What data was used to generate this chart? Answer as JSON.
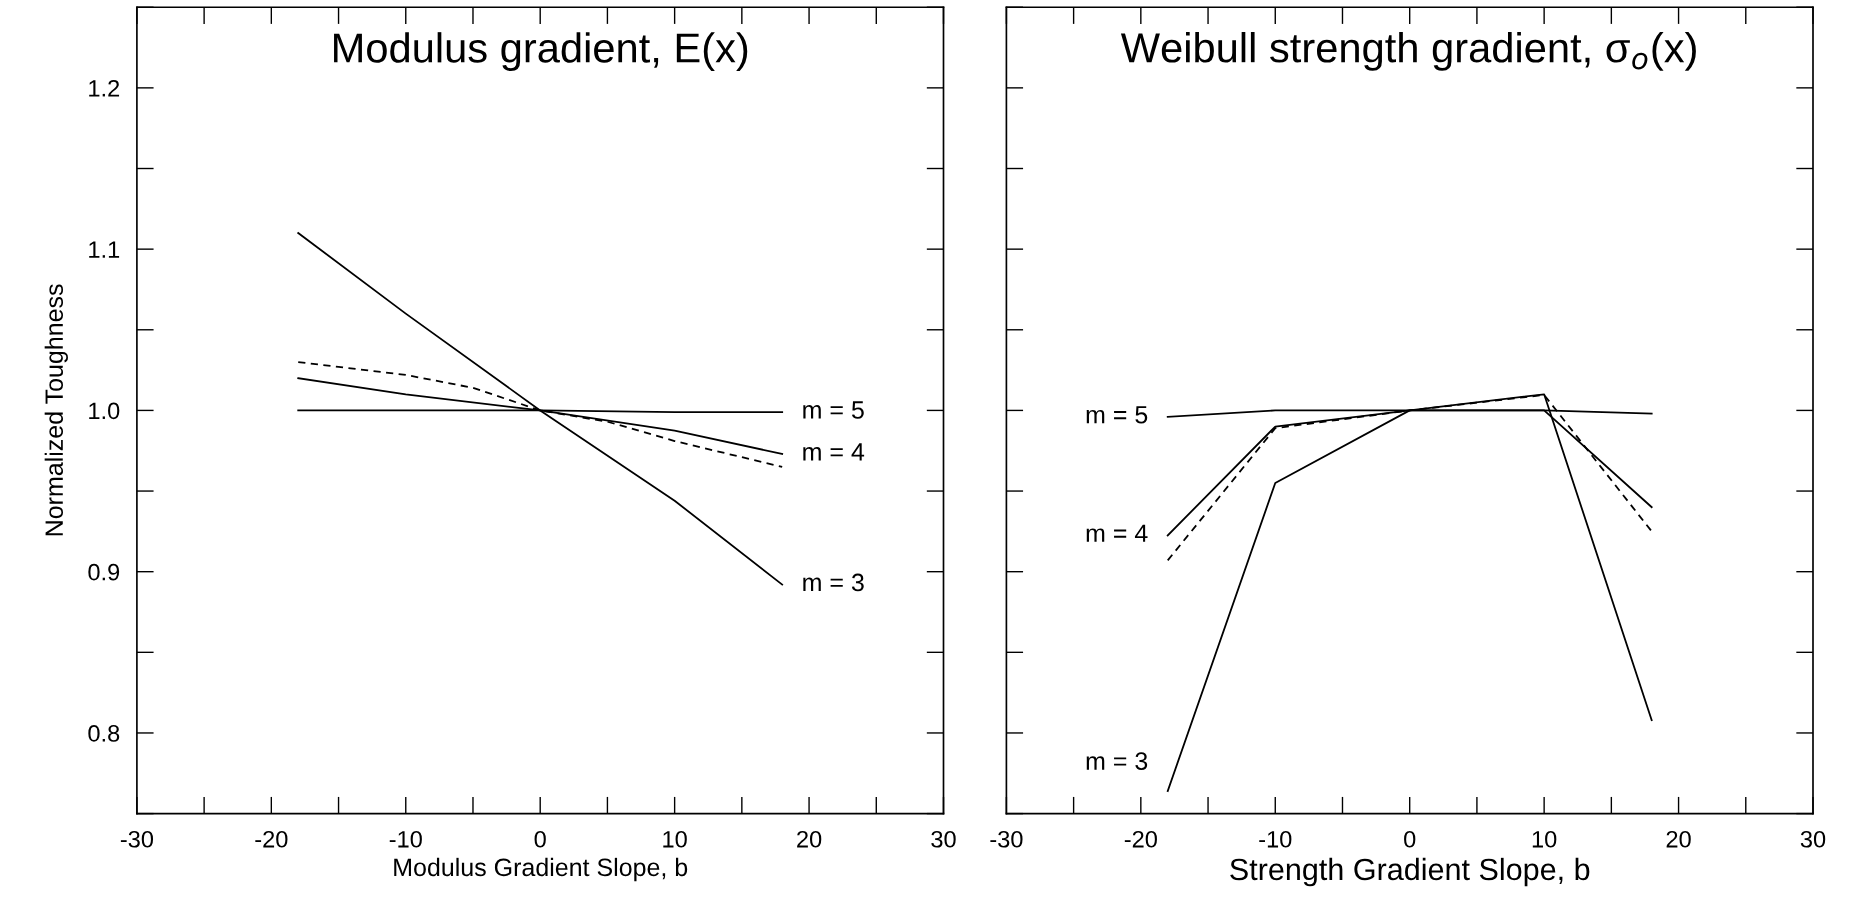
{
  "chart_data": [
    {
      "type": "line",
      "title": "Modulus gradient, E(x)",
      "xlabel": "Modulus Gradient Slope, b",
      "ylabel": "Normalized Toughness",
      "x": [
        -18,
        -10,
        0,
        10,
        18
      ],
      "series": [
        {
          "name": "m = 3",
          "color": "#000000",
          "values": [
            1.11,
            1.06,
            1.0,
            0.944,
            0.892
          ]
        },
        {
          "name": "m = 4",
          "color": "#000000",
          "values": [
            1.02,
            1.01,
            1.0,
            0.9875,
            0.973
          ]
        },
        {
          "color": "#000000",
          "line_style": "dashed",
          "x": [
            -18,
            -15,
            -10,
            -5,
            0,
            5,
            10,
            15,
            18
          ],
          "values": [
            1.03,
            1.027,
            1.022,
            1.014,
            1.0,
            0.993,
            0.981,
            0.971,
            0.965
          ]
        },
        {
          "name": "m = 5",
          "color": "#000000",
          "values": [
            1.0,
            1.0,
            1.0,
            0.999,
            0.999
          ]
        }
      ],
      "xlim": [
        -30,
        30
      ],
      "xticks": [
        -30,
        -20,
        -10,
        0,
        10,
        20,
        30
      ],
      "ylim": [
        0.75,
        1.25
      ],
      "yticks": [
        0.8,
        0.9,
        {
          "value": 1.0,
          "label": "1.0"
        },
        1.1,
        1.2
      ],
      "line_style": "solid",
      "marker": "none",
      "grid": false,
      "legend": false
    },
    {
      "type": "line",
      "title": "Weibull strength gradient, σ$_{o}$(x)",
      "xlabel": "Strength Gradient Slope, b",
      "x": [
        -18,
        -10,
        0,
        10,
        18
      ],
      "series": [
        {
          "name": "m = 5",
          "color": "#000000",
          "values": [
            0.996,
            1.0,
            1.0,
            1.0,
            0.998
          ]
        },
        {
          "name": "m = 4",
          "color": "#000000",
          "values": [
            0.9225,
            0.99,
            1.0,
            1.0,
            0.94
          ]
        },
        {
          "color": "#000000",
          "line_style": "dashed",
          "values": [
            0.907,
            0.989,
            1.0,
            1.0096,
            0.925
          ]
        },
        {
          "name": "m = 3",
          "color": "#000000",
          "values": [
            0.764,
            0.955,
            1.0,
            1.01,
            0.808
          ]
        }
      ],
      "xlim": [
        -30,
        30
      ],
      "xticks": [
        -30,
        -20,
        -10,
        0,
        10,
        20,
        30
      ],
      "ylim": [
        0.75,
        1.25
      ],
      "yticks": [
        0.8,
        0.9,
        1.0,
        1.1,
        1.2
      ],
      "tick_labels": "x",
      "line_style": "solid",
      "marker": "none",
      "grid": false,
      "legend": false
    }
  ]
}
